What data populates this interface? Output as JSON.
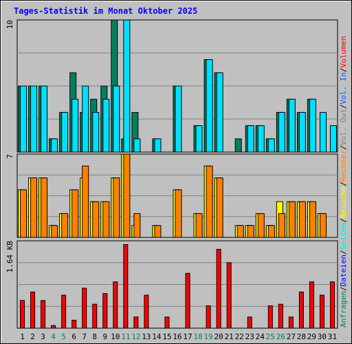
{
  "title": "Tages-Statistik im Monat Oktober 2025",
  "side_legend": [
    {
      "text": "Anfragen",
      "color": "#00805c"
    },
    {
      "text": "/",
      "color": "#000000"
    },
    {
      "text": "Dateien",
      "color": "#0000ff"
    },
    {
      "text": "/",
      "color": "#000000"
    },
    {
      "text": "Seiten",
      "color": "#00e0ff"
    },
    {
      "text": "/",
      "color": "#000000"
    },
    {
      "text": "Besuche",
      "color": "#ffff00"
    },
    {
      "text": "/",
      "color": "#000000"
    },
    {
      "text": "Rechner",
      "color": "#ff8000"
    },
    {
      "text": "/",
      "color": "#000000"
    },
    {
      "text": "Vol. Out",
      "color": "#808080"
    },
    {
      "text": "/",
      "color": "#000000"
    },
    {
      "text": "Vol. In",
      "color": "#0060ff"
    },
    {
      "text": "/",
      "color": "#000000"
    },
    {
      "text": "Volumen",
      "color": "#ff0000"
    }
  ],
  "chart_data": [
    {
      "type": "bar",
      "panel": "top",
      "ymax_label": "10",
      "ylim": [
        0,
        10
      ],
      "categories": [
        "1",
        "2",
        "3",
        "4",
        "5",
        "6",
        "7",
        "8",
        "9",
        "10",
        "11",
        "12",
        "13",
        "14",
        "15",
        "16",
        "17",
        "18",
        "19",
        "20",
        "21",
        "22",
        "23",
        "24",
        "25",
        "26",
        "27",
        "28",
        "29",
        "30",
        "31"
      ],
      "weekend_days": [
        "4",
        "5",
        "11",
        "12",
        "18",
        "19",
        "25",
        "26"
      ],
      "series": [
        {
          "name": "Anfragen",
          "color": "#008060",
          "values": [
            5,
            5,
            5,
            1,
            3,
            6,
            3,
            4,
            5,
            10,
            1,
            3,
            0,
            1,
            0,
            5,
            0,
            2,
            7,
            6,
            0,
            1,
            2,
            2,
            1,
            3,
            4,
            3,
            4,
            0,
            0
          ]
        },
        {
          "name": "Seiten",
          "color": "#00e0ff",
          "values": [
            5,
            5,
            5,
            1,
            3,
            4,
            5,
            3,
            4,
            5,
            10,
            1,
            0,
            1,
            0,
            5,
            0,
            2,
            7,
            6,
            0,
            0,
            2,
            2,
            1,
            3,
            4,
            3,
            4,
            3,
            2
          ]
        }
      ],
      "grid": true
    },
    {
      "type": "bar",
      "panel": "middle",
      "ymax_label": "7",
      "ylim": [
        0,
        7
      ],
      "categories": [
        "1",
        "2",
        "3",
        "4",
        "5",
        "6",
        "7",
        "8",
        "9",
        "10",
        "11",
        "12",
        "13",
        "14",
        "15",
        "16",
        "17",
        "18",
        "19",
        "20",
        "21",
        "22",
        "23",
        "24",
        "25",
        "26",
        "27",
        "28",
        "29",
        "30",
        "31"
      ],
      "series": [
        {
          "name": "Besuche",
          "color": "#ffff00",
          "values": [
            4,
            5,
            5,
            1,
            2,
            4,
            5,
            3,
            3,
            5,
            7,
            1,
            0,
            1,
            0,
            4,
            0,
            2,
            6,
            5,
            0,
            1,
            1,
            2,
            1,
            3,
            3,
            3,
            3,
            2,
            0
          ]
        },
        {
          "name": "Rechner",
          "color": "#ff8000",
          "values": [
            4,
            5,
            5,
            1,
            2,
            4,
            6,
            3,
            3,
            5,
            7,
            2,
            0,
            1,
            0,
            4,
            0,
            2,
            6,
            5,
            0,
            1,
            1,
            2,
            1,
            2,
            3,
            3,
            3,
            2,
            0
          ]
        }
      ],
      "grid": true
    },
    {
      "type": "bar",
      "panel": "bottom",
      "ymax_label": "1.64 KB",
      "ylim": [
        0,
        1.64
      ],
      "categories": [
        "1",
        "2",
        "3",
        "4",
        "5",
        "6",
        "7",
        "8",
        "9",
        "10",
        "11",
        "12",
        "13",
        "14",
        "15",
        "16",
        "17",
        "18",
        "19",
        "20",
        "21",
        "22",
        "23",
        "24",
        "25",
        "26",
        "27",
        "28",
        "29",
        "30",
        "31"
      ],
      "series": [
        {
          "name": "Volumen",
          "color": "#ff0000",
          "values": [
            0.52,
            0.68,
            0.52,
            0.05,
            0.62,
            0.15,
            0.75,
            0.45,
            0.65,
            0.87,
            1.57,
            0.21,
            0.62,
            0,
            0.21,
            0,
            1.03,
            0,
            0.42,
            1.48,
            1.23,
            0,
            0.21,
            0,
            0.42,
            0.45,
            0.21,
            0.68,
            0.87,
            0.62,
            0.87
          ]
        }
      ],
      "grid": true
    }
  ]
}
